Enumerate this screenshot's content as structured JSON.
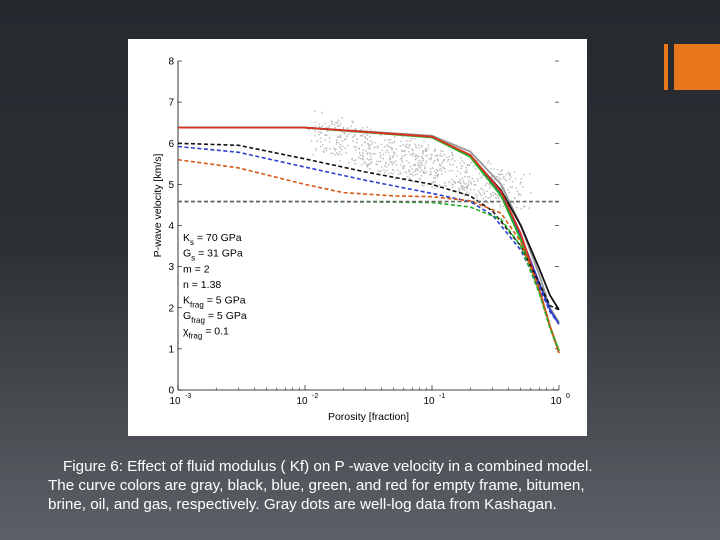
{
  "accent_color": "#e8761c",
  "caption": {
    "line1": "Figure 6:  Effect of fluid modulus ( Kf) on  P -wave velocity in a combined model.",
    "line2": "The curve colors are gray, black, blue, green, and red for empty frame, bitumen,",
    "line3": "brine, oil, and gas, respectively. Gray dots are well-log data from Kashagan."
  },
  "chart_data": {
    "type": "line",
    "xlabel": "Porosity [fraction]",
    "ylabel": "P-wave velocity [km/s]",
    "xscale": "log",
    "xlim": [
      0.001,
      1
    ],
    "ylim": [
      0,
      8
    ],
    "x_ticks": [
      "10",
      "10",
      "10",
      "10"
    ],
    "x_tick_exponents": [
      "-3",
      "-2",
      "-1",
      "0"
    ],
    "y_ticks": [
      "0",
      "1",
      "2",
      "3",
      "4",
      "5",
      "6",
      "7",
      "8"
    ],
    "grid": false,
    "parameters": [
      {
        "sym": "K",
        "sub": "s",
        "rest": " = 70 GPa"
      },
      {
        "sym": "G",
        "sub": "s",
        "rest": " = 31 GPa"
      },
      {
        "sym": "m",
        "sub": "",
        "rest": " = 2"
      },
      {
        "sym": "n",
        "sub": "",
        "rest": " = 1.38"
      },
      {
        "sym": "K",
        "sub": "frag",
        "rest": " = 5 GPa"
      },
      {
        "sym": "G",
        "sub": "frag",
        "rest": " = 5 GPa"
      },
      {
        "sym": "χ",
        "sub": "frag",
        "rest": " = 0.1"
      }
    ],
    "series": [
      {
        "color": "#999999",
        "style": "solid",
        "x": [
          0.001,
          0.01,
          0.1,
          0.2,
          0.35,
          0.5,
          0.7,
          0.85,
          1.0
        ],
        "y": [
          6.38,
          6.38,
          6.18,
          5.8,
          5.0,
          4.0,
          2.8,
          2.0,
          1.65
        ]
      },
      {
        "color": "#111111",
        "style": "solid",
        "x": [
          0.001,
          0.01,
          0.1,
          0.2,
          0.35,
          0.5,
          0.7,
          0.85,
          1.0
        ],
        "y": [
          6.38,
          6.38,
          6.16,
          5.7,
          4.85,
          4.0,
          2.95,
          2.3,
          1.95
        ]
      },
      {
        "color": "#2a3fd0",
        "style": "solid",
        "x": [
          0.001,
          0.01,
          0.1,
          0.2,
          0.35,
          0.5,
          0.7,
          0.85,
          1.0
        ],
        "y": [
          6.38,
          6.38,
          6.15,
          5.68,
          4.75,
          3.75,
          2.6,
          1.95,
          1.6
        ]
      },
      {
        "color": "#22b022",
        "style": "solid",
        "x": [
          0.001,
          0.01,
          0.1,
          0.2,
          0.35,
          0.5,
          0.7,
          0.85,
          1.0
        ],
        "y": [
          6.38,
          6.38,
          6.14,
          5.67,
          4.72,
          3.65,
          2.4,
          1.55,
          0.95
        ]
      },
      {
        "color": "#e03020",
        "style": "solid",
        "x": [
          0.001,
          0.01,
          0.1,
          0.2,
          0.35,
          0.5,
          0.7,
          0.85,
          1.0
        ],
        "y": [
          6.38,
          6.38,
          6.16,
          5.72,
          4.82,
          3.8,
          2.45,
          1.55,
          0.9
        ]
      },
      {
        "color": "#111111",
        "style": "dashed",
        "x": [
          0.001,
          0.003,
          0.01,
          0.03,
          0.1,
          0.2,
          0.3,
          0.5,
          0.7,
          0.85,
          1.0
        ],
        "y": [
          6.0,
          5.95,
          5.62,
          5.3,
          5.0,
          4.72,
          4.35,
          3.5,
          2.6,
          2.05,
          1.95
        ]
      },
      {
        "color": "#2a3fd0",
        "style": "dashed",
        "x": [
          0.001,
          0.003,
          0.01,
          0.03,
          0.1,
          0.2,
          0.3,
          0.5,
          0.7,
          0.85,
          1.0
        ],
        "y": [
          5.92,
          5.78,
          5.42,
          5.1,
          4.78,
          4.58,
          4.25,
          3.4,
          2.5,
          1.9,
          1.6
        ]
      },
      {
        "color": "#d85a18",
        "style": "dashed",
        "x": [
          0.001,
          0.003,
          0.01,
          0.02,
          0.05,
          0.1,
          0.2,
          0.35,
          0.5,
          0.7,
          0.85,
          1.0
        ],
        "y": [
          5.6,
          5.4,
          5.0,
          4.8,
          4.72,
          4.7,
          4.6,
          4.3,
          3.6,
          2.45,
          1.55,
          0.9
        ]
      },
      {
        "color": "#22b022",
        "style": "dashed",
        "x": [
          0.001,
          0.01,
          0.05,
          0.1,
          0.2,
          0.35,
          0.5,
          0.7,
          0.85,
          1.0
        ],
        "y": [
          4.58,
          4.58,
          4.57,
          4.56,
          4.45,
          4.15,
          3.5,
          2.35,
          1.5,
          0.95
        ]
      },
      {
        "color": "#666666",
        "style": "dashed",
        "x": [
          0.001,
          0.01,
          0.1,
          0.3,
          1.0
        ],
        "y": [
          4.58,
          4.58,
          4.58,
          4.58,
          4.58
        ]
      }
    ]
  }
}
